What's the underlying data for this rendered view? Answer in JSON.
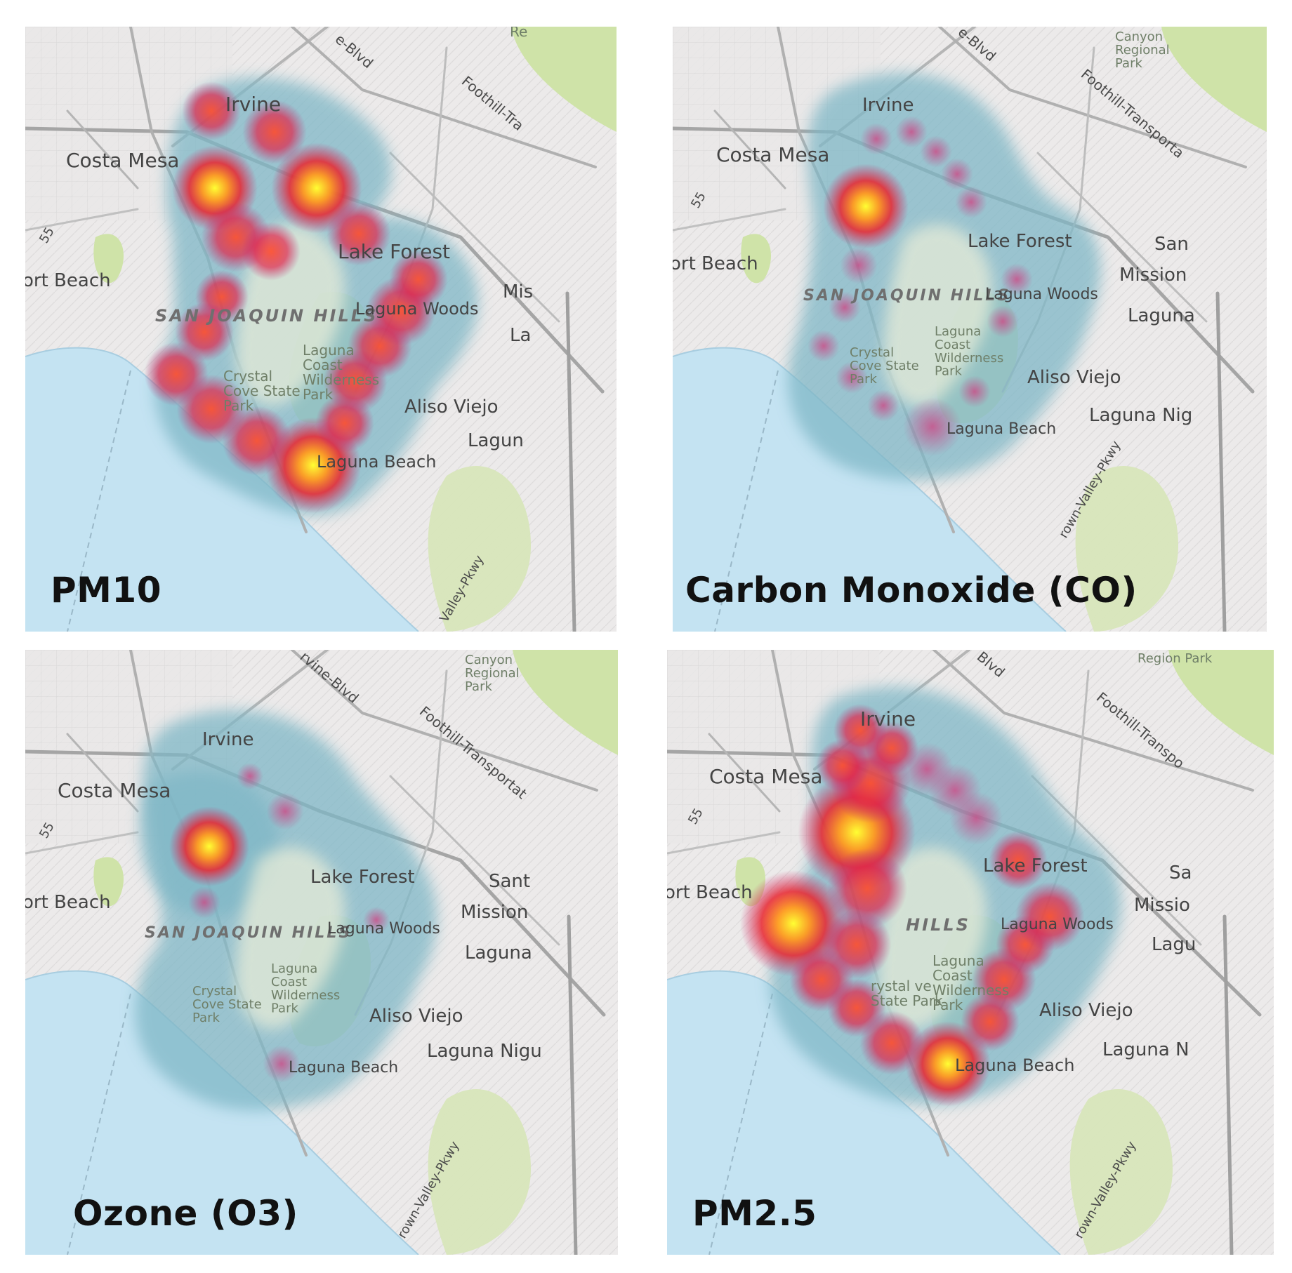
{
  "panels": [
    {
      "id": "pm10",
      "title": "PM10",
      "labels": [
        "Irvine",
        "Costa Mesa",
        "Lake Forest",
        "ort Beach",
        "SAN JOAQUIN HILLS",
        "Laguna Woods",
        "Laguna Coast Wilderness Park",
        "Crystal Cove State Park",
        "Aliso Viejo",
        "Laguna Beach",
        "Lagun",
        "Mis",
        "La",
        "55",
        "e-Blvd",
        "Foothill-Tra",
        "Valley-Pkwy",
        "Re"
      ]
    },
    {
      "id": "co",
      "title": "Carbon Monoxide (CO)",
      "labels": [
        "Irvine",
        "Costa Mesa",
        "Lake Forest",
        "ort Beach",
        "SAN JOAQUIN HILLS",
        "Laguna Woods",
        "Laguna Coast Wilderness Park",
        "Crystal Cove State Park",
        "Aliso Viejo",
        "Laguna Beach",
        "Laguna Nig",
        "Mission",
        "San",
        "Laguna",
        "55",
        "e-Blvd",
        "Foothill-Transporta",
        "Canyon Regional Park",
        "rown-Valley-Pkwy"
      ]
    },
    {
      "id": "o3",
      "title": "Ozone (O3)",
      "labels": [
        "Irvine",
        "Costa Mesa",
        "Lake Forest",
        "ort Beach",
        "SAN JOAQUIN HILLS",
        "Laguna Woods",
        "Laguna Coast Wilderness Park",
        "Crystal Cove State Park",
        "Aliso Viejo",
        "Laguna Beach",
        "Laguna Nigu",
        "Mission",
        "Sant",
        "Laguna",
        "55",
        "rvine-Blvd",
        "Foothill-Transportat",
        "Canyon Regional Park",
        "rown-Valley-Pkwy"
      ]
    },
    {
      "id": "pm25",
      "title": "PM2.5",
      "labels": [
        "Irvine",
        "Costa Mesa",
        "Lake Forest",
        "ort Beach",
        "HILLS",
        "Laguna Woods",
        "Laguna Coast Wilderness Park",
        "rystal ve State Park",
        "Aliso Viejo",
        "Laguna Beach",
        "Laguna N",
        "Missio",
        "Sa",
        "Lagu",
        "55",
        "Blvd",
        "Foothill-Transpo",
        "Region Park",
        "rown-Valley-Pkwy"
      ]
    }
  ]
}
